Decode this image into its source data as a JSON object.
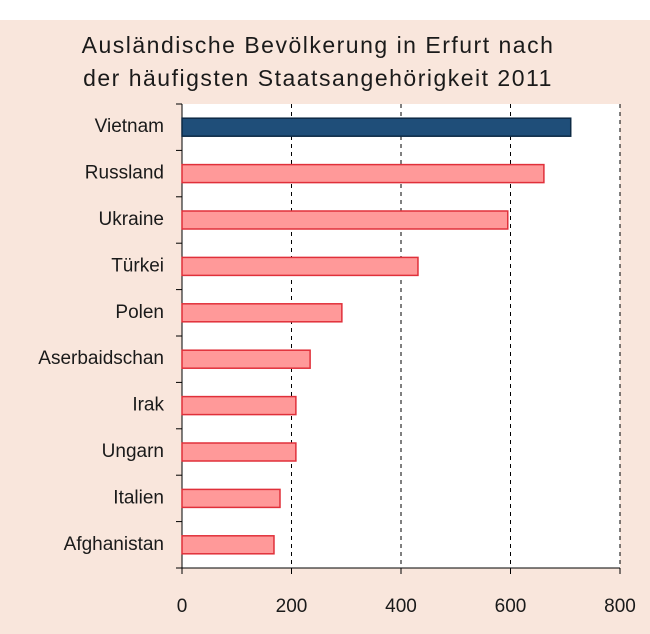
{
  "chart_data": {
    "type": "hbar",
    "title": [
      "Ausländische Bevölkerung in Erfurt nach",
      "der häufigsten Staatsangehörigkeit 2011"
    ],
    "categories": [
      "Vietnam",
      "Russland",
      "Ukraine",
      "Türkei",
      "Polen",
      "Aserbaidschan",
      "Irak",
      "Ungarn",
      "Italien",
      "Afghanistan"
    ],
    "values": [
      710,
      661,
      595,
      431,
      292,
      234,
      208,
      208,
      179,
      168
    ],
    "colors": [
      "#1f4e79",
      "#ff9999",
      "#ff9999",
      "#ff9999",
      "#ff9999",
      "#ff9999",
      "#ff9999",
      "#ff9999",
      "#ff9999",
      "#ff9999"
    ],
    "xlim": [
      0,
      800
    ],
    "xticks": [
      0,
      200,
      400,
      600,
      800
    ],
    "grid": true
  }
}
